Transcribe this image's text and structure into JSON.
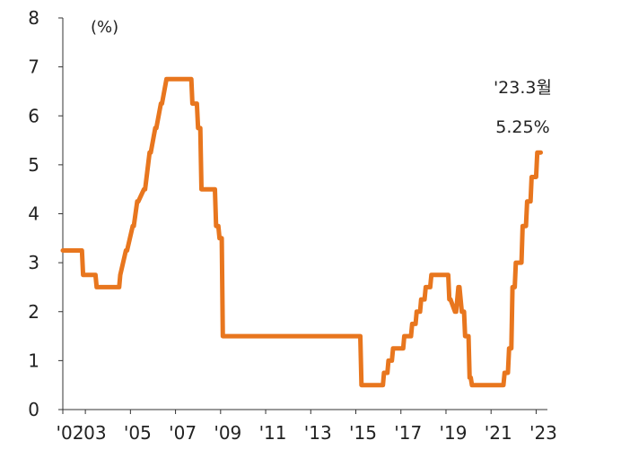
{
  "chart_data": {
    "type": "line",
    "unit_label": "(%)",
    "ylim": [
      0,
      8
    ],
    "yticks": [
      "0",
      "1",
      "2",
      "3",
      "4",
      "5",
      "6",
      "7",
      "8"
    ],
    "xlim": [
      2002.0,
      2023.5
    ],
    "xticks": [
      {
        "label": "'02",
        "value": 2002.0
      },
      {
        "label": "'03",
        "value": 2003.0
      },
      {
        "label": "'05",
        "value": 2005.0
      },
      {
        "label": "'07",
        "value": 2007.0
      },
      {
        "label": "'09",
        "value": 2009.0
      },
      {
        "label": "'11",
        "value": 2011.0
      },
      {
        "label": "'13",
        "value": 2013.0
      },
      {
        "label": "'15",
        "value": 2015.0
      },
      {
        "label": "'17",
        "value": 2017.0
      },
      {
        "label": "'19",
        "value": 2019.0
      },
      {
        "label": "'21",
        "value": 2021.0
      },
      {
        "label": "'23",
        "value": 2023.0
      }
    ],
    "grid": false,
    "color": "#E8761E",
    "series": [
      {
        "x": [
          2002.0,
          2002.85,
          2002.9,
          2003.45,
          2003.5,
          2004.5,
          2004.55,
          2004.8,
          2004.85,
          2005.1,
          2005.15,
          2005.3,
          2005.35,
          2005.6,
          2005.65,
          2005.85,
          2005.9,
          2006.1,
          2006.15,
          2006.35,
          2006.4,
          2006.6,
          2006.65,
          2006.95,
          2007.0,
          2007.3,
          2007.35,
          2007.7,
          2007.75,
          2007.95,
          2008.0,
          2008.1,
          2008.15,
          2008.75,
          2008.8,
          2008.9,
          2008.95,
          2009.05,
          2009.1,
          2015.2,
          2015.25,
          2016.2,
          2016.25,
          2016.4,
          2016.45,
          2016.6,
          2016.65,
          2017.1,
          2017.15,
          2017.45,
          2017.5,
          2017.65,
          2017.7,
          2017.85,
          2017.9,
          2018.05,
          2018.1,
          2018.3,
          2018.35,
          2019.1,
          2019.15,
          2019.2,
          2019.4,
          2019.45,
          2019.55,
          2019.6,
          2019.7,
          2019.8,
          2019.85,
          2020.0,
          2020.05,
          2020.1,
          2020.15,
          2021.55,
          2021.6,
          2021.75,
          2021.8,
          2021.9,
          2021.95,
          2022.05,
          2022.1,
          2022.35,
          2022.4,
          2022.55,
          2022.6,
          2022.75,
          2022.8,
          2023.0,
          2023.05,
          2023.2
        ],
        "y": [
          3.25,
          3.25,
          2.75,
          2.75,
          2.5,
          2.5,
          2.75,
          3.25,
          3.25,
          3.75,
          3.75,
          4.25,
          4.25,
          4.5,
          4.5,
          5.25,
          5.25,
          5.75,
          5.75,
          6.25,
          6.25,
          6.75,
          6.75,
          6.75,
          6.75,
          6.75,
          6.75,
          6.75,
          6.25,
          6.25,
          5.75,
          5.75,
          4.5,
          4.5,
          3.75,
          3.75,
          3.5,
          3.5,
          1.5,
          1.5,
          0.5,
          0.5,
          0.75,
          0.75,
          1.0,
          1.0,
          1.25,
          1.25,
          1.5,
          1.5,
          1.75,
          1.75,
          2.0,
          2.0,
          2.25,
          2.25,
          2.5,
          2.5,
          2.75,
          2.75,
          2.25,
          2.25,
          2.0,
          2.0,
          2.5,
          2.5,
          2.0,
          2.0,
          1.5,
          1.5,
          0.65,
          0.65,
          0.5,
          0.5,
          0.75,
          0.75,
          1.25,
          1.25,
          2.5,
          2.5,
          3.0,
          3.0,
          3.75,
          3.75,
          4.25,
          4.25,
          4.75,
          4.75,
          5.25,
          5.25
        ]
      }
    ],
    "annotation": {
      "lines": [
        "'23.3월",
        "5.25%"
      ],
      "x": 2023.2,
      "y": 5.25
    }
  }
}
